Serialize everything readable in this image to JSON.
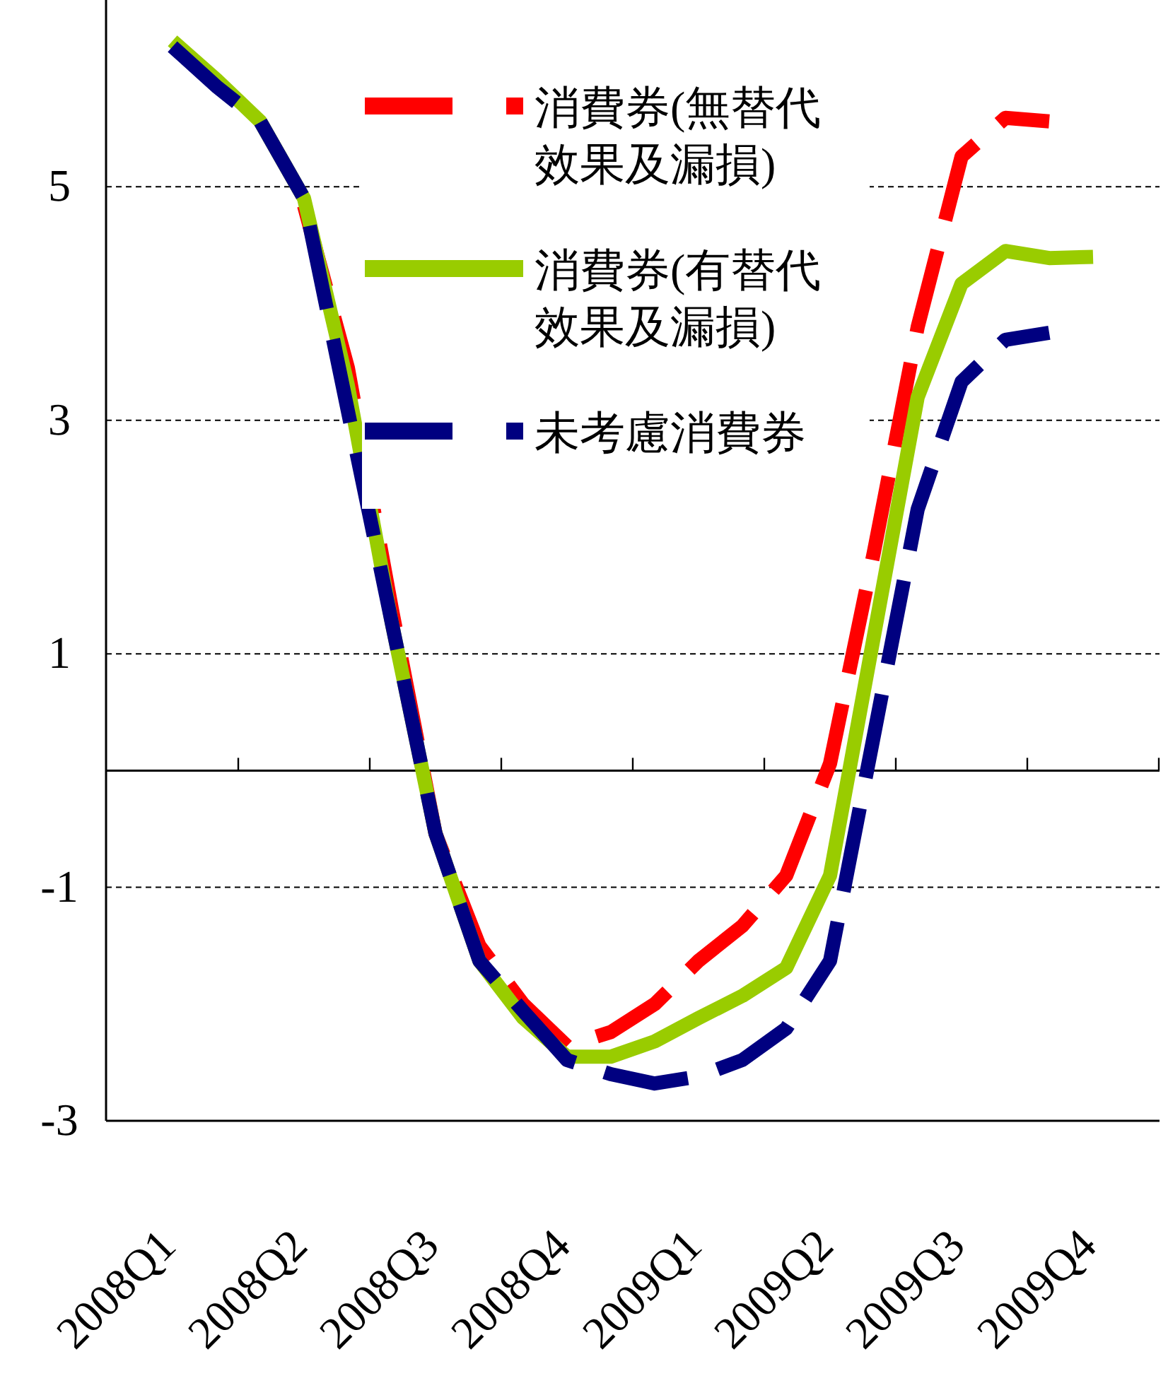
{
  "chart_data": {
    "type": "line",
    "categories": [
      "2008Q1",
      null,
      null,
      "2008Q2",
      null,
      null,
      "2008Q3",
      null,
      null,
      "2008Q4",
      null,
      null,
      "2009Q1",
      null,
      null,
      "2009Q2",
      null,
      null,
      "2009Q3",
      null,
      null,
      "2009Q4"
    ],
    "series": [
      {
        "name": "消費券(無替代效果及漏損)",
        "color": "#ff0000",
        "line_style": "dashed",
        "values": [
          null,
          null,
          null,
          4.84,
          3.45,
          1.39,
          -0.54,
          -1.5,
          -2.0,
          -2.36,
          -2.24,
          -2.0,
          -1.63,
          -1.33,
          -0.9,
          0.06,
          1.87,
          3.8,
          5.26,
          5.59,
          5.56,
          null
        ]
      },
      {
        "name": "消費券(有替代效果及漏損)",
        "color": "#99cc00",
        "line_style": "solid",
        "values": [
          6.25,
          5.92,
          5.56,
          4.9,
          3.3,
          1.27,
          -0.54,
          -1.63,
          -2.12,
          -2.45,
          -2.45,
          -2.32,
          -2.12,
          -1.93,
          -1.69,
          -0.9,
          1.15,
          3.2,
          4.17,
          4.45,
          4.39,
          4.4
        ]
      },
      {
        "name": "未考慮消費券",
        "color": "#000080",
        "line_style": "dashed",
        "values": [
          6.2,
          5.86,
          5.56,
          4.9,
          3.08,
          1.27,
          -0.54,
          -1.63,
          -2.06,
          -2.48,
          -2.6,
          -2.68,
          -2.62,
          -2.48,
          -2.21,
          -1.63,
          0.3,
          2.24,
          3.33,
          3.69,
          3.75,
          null
        ]
      }
    ],
    "ylim": [
      -3,
      6.6
    ],
    "yticks": [
      -3,
      -1,
      1,
      3,
      5
    ],
    "grid": "y",
    "legend": "top right",
    "ref_lines": [
      {
        "axis": "y",
        "value": 0,
        "color": "#000000",
        "line_style": "solid"
      }
    ]
  }
}
